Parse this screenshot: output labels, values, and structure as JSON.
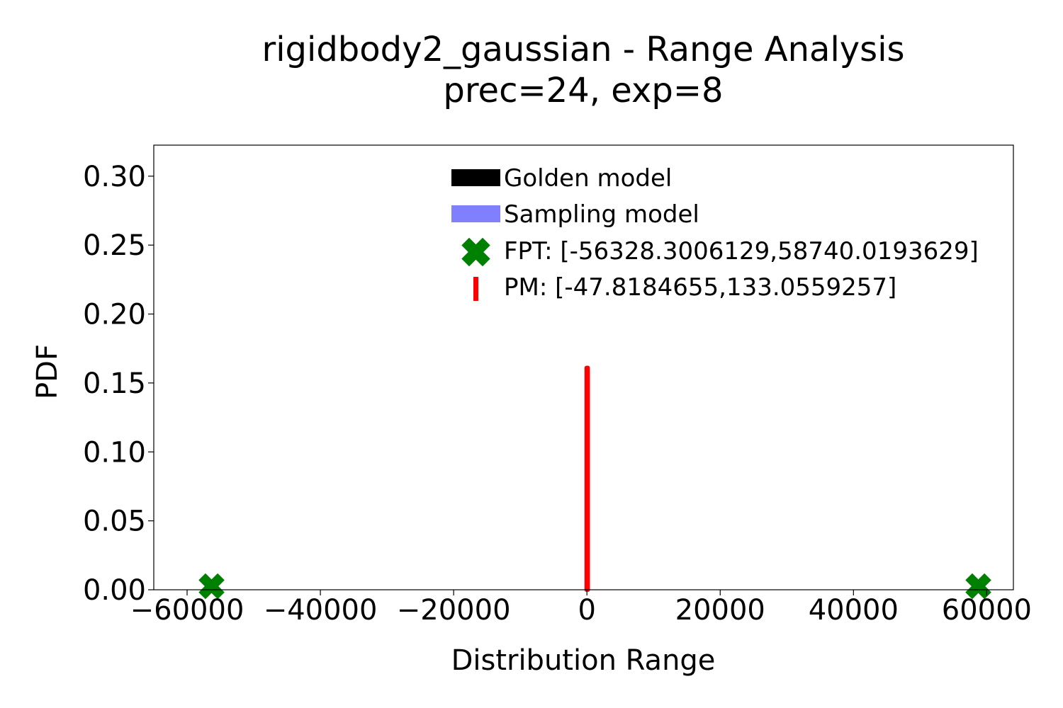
{
  "chart_data": {
    "type": "line",
    "title": "rigidbody2_gaussian - Range Analysis",
    "subtitle": "prec=24, exp=8",
    "xlabel": "Distribution Range",
    "ylabel": "PDF",
    "xlim": [
      -65000,
      64000
    ],
    "ylim": [
      0,
      0.3225
    ],
    "xticks": [
      -60000,
      -40000,
      -20000,
      0,
      20000,
      40000,
      60000
    ],
    "xtick_labels": [
      "−60000",
      "−40000",
      "−20000",
      "0",
      "20000",
      "40000",
      "60000"
    ],
    "yticks": [
      0.0,
      0.05,
      0.1,
      0.15,
      0.2,
      0.25,
      0.3
    ],
    "ytick_labels": [
      "0.00",
      "0.05",
      "0.10",
      "0.15",
      "0.20",
      "0.25",
      "0.30"
    ],
    "grid": false,
    "legend_position": "top-center",
    "legend": [
      {
        "label": "Golden model",
        "kind": "patch",
        "color": "#000000"
      },
      {
        "label": "Sampling model",
        "kind": "patch",
        "color": "#8080ff"
      },
      {
        "label": "FPT: [-56328.3006129,58740.0193629]",
        "kind": "x-marker",
        "color": "#008000"
      },
      {
        "label": "PM: [-47.8184655,133.0559257]",
        "kind": "vline",
        "color": "#ff0000"
      }
    ],
    "series": [
      {
        "name": "FPT: [-56328.3006129,58740.0193629]",
        "type": "marker",
        "color": "#008000",
        "points": [
          {
            "x": -56328.3006129,
            "y": 0.0
          },
          {
            "x": 58740.0193629,
            "y": 0.0
          }
        ]
      },
      {
        "name": "PM: [-47.8184655,133.0559257]",
        "type": "vline",
        "color": "#ff0000",
        "lines": [
          {
            "x": -47.8184655,
            "y0": 0.0,
            "y1": 0.161
          },
          {
            "x": 133.0559257,
            "y0": 0.0,
            "y1": 0.161
          }
        ]
      },
      {
        "name": "Golden model",
        "type": "spike",
        "color": "#000000",
        "lines": [
          {
            "x": 0,
            "y0": 0.0,
            "y1": 0.0
          }
        ]
      }
    ]
  }
}
